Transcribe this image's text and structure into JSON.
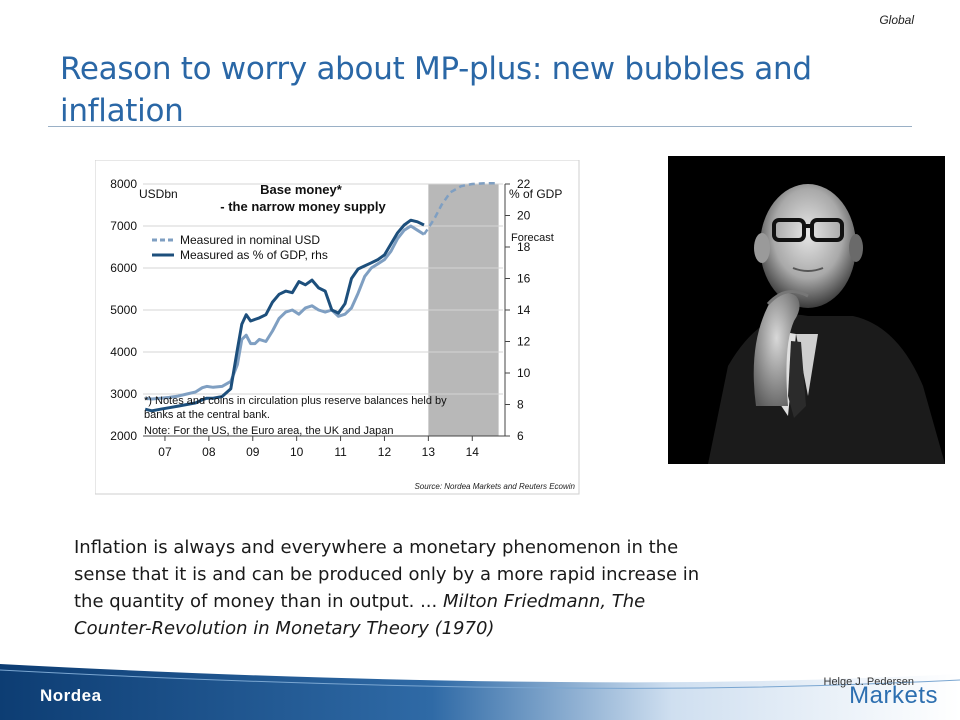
{
  "header": {
    "tag": "Global",
    "title": "Reason to worry about MP-plus: new bubbles and inflation"
  },
  "quote": {
    "text": "Inflation is always and everywhere a monetary phenomenon in the sense that it is and can be produced only by a more rapid increase in the quantity of money than in output. ...",
    "attribution": "Milton Friedmann, The Counter-Revolution in Monetary Theory (1970)"
  },
  "photo": {
    "icon": "portrait-photo-icon"
  },
  "footer": {
    "author": "Helge J. Pedersen",
    "brand_left": "Nordea",
    "brand_right": "Markets",
    "brand_color": "#2d6fb0"
  },
  "chart_data": {
    "type": "line",
    "title": "Base money*",
    "subtitle": "- the narrow money supply",
    "ylabel_left": "USDbn",
    "ylabel_right": "% of GDP",
    "ylim_left": [
      2000,
      8000
    ],
    "yticks_left": [
      2000,
      3000,
      4000,
      5000,
      6000,
      7000,
      8000
    ],
    "ylim_right": [
      6,
      22
    ],
    "yticks_right": [
      6,
      8,
      10,
      12,
      14,
      16,
      18,
      20,
      22
    ],
    "xlim": [
      2006.5,
      2014.7
    ],
    "xticks": [
      {
        "pos": 2007,
        "label": "07"
      },
      {
        "pos": 2008,
        "label": "08"
      },
      {
        "pos": 2009,
        "label": "09"
      },
      {
        "pos": 2010,
        "label": "10"
      },
      {
        "pos": 2011,
        "label": "11"
      },
      {
        "pos": 2012,
        "label": "12"
      },
      {
        "pos": 2013,
        "label": "13"
      },
      {
        "pos": 2014,
        "label": "14"
      }
    ],
    "forecast": {
      "label": "Forecast",
      "from": 2013.0,
      "to": 2014.6
    },
    "legend": [
      {
        "label": "Measured in nominal USD",
        "color": "#7f9fc2",
        "dashed": true
      },
      {
        "label": "Measured as % of GDP, rhs",
        "color": "#1d4f7c",
        "dashed": false
      }
    ],
    "series": [
      {
        "name": "Measured in nominal USD",
        "color": "#7f9fc2",
        "axis": "left",
        "x": [
          2006.55,
          2006.7,
          2006.9,
          2007.1,
          2007.3,
          2007.5,
          2007.7,
          2007.85,
          2007.95,
          2008.1,
          2008.3,
          2008.5,
          2008.65,
          2008.75,
          2008.85,
          2008.95,
          2009.05,
          2009.15,
          2009.3,
          2009.45,
          2009.6,
          2009.75,
          2009.9,
          2010.05,
          2010.2,
          2010.35,
          2010.5,
          2010.65,
          2010.8,
          2010.95,
          2011.1,
          2011.25,
          2011.4,
          2011.55,
          2011.7,
          2011.85,
          2012.0,
          2012.15,
          2012.3,
          2012.45,
          2012.6,
          2012.75,
          2012.9
        ],
        "y": [
          2900,
          2880,
          2900,
          2920,
          2950,
          3000,
          3050,
          3150,
          3180,
          3160,
          3180,
          3300,
          3700,
          4300,
          4400,
          4200,
          4200,
          4300,
          4250,
          4500,
          4800,
          4950,
          5000,
          4900,
          5050,
          5100,
          5000,
          4950,
          5000,
          4850,
          4900,
          5050,
          5400,
          5800,
          6000,
          6100,
          6200,
          6400,
          6700,
          6900,
          7000,
          6900,
          6800
        ]
      },
      {
        "name": "Measured as % of GDP, rhs",
        "color": "#1d4f7c",
        "axis": "right",
        "x": [
          2006.55,
          2006.7,
          2006.9,
          2007.1,
          2007.3,
          2007.5,
          2007.7,
          2007.85,
          2007.95,
          2008.1,
          2008.3,
          2008.5,
          2008.65,
          2008.75,
          2008.85,
          2008.95,
          2009.05,
          2009.15,
          2009.3,
          2009.45,
          2009.6,
          2009.75,
          2009.9,
          2010.05,
          2010.2,
          2010.35,
          2010.5,
          2010.65,
          2010.8,
          2010.95,
          2011.1,
          2011.25,
          2011.4,
          2011.55,
          2011.7,
          2011.85,
          2012.0,
          2012.15,
          2012.3,
          2012.45,
          2012.6,
          2012.75,
          2012.9
        ],
        "y": [
          7.7,
          7.6,
          7.7,
          7.8,
          7.9,
          8.0,
          8.1,
          8.3,
          8.4,
          8.4,
          8.5,
          9.0,
          11.5,
          13.1,
          13.7,
          13.3,
          13.4,
          13.5,
          13.7,
          14.5,
          15.0,
          15.2,
          15.1,
          15.8,
          15.6,
          15.9,
          15.4,
          15.2,
          14.0,
          13.8,
          14.4,
          16.0,
          16.6,
          16.8,
          17.0,
          17.2,
          17.5,
          18.2,
          18.9,
          19.4,
          19.7,
          19.6,
          19.4
        ]
      },
      {
        "name": "Measured in nominal USD forecast",
        "color": "#7f9fc2",
        "axis": "left",
        "dashed": true,
        "x": [
          2012.9,
          2013.0,
          2013.15,
          2013.3,
          2013.5,
          2013.75,
          2014.0,
          2014.3,
          2014.55
        ],
        "y": [
          6800,
          6950,
          7200,
          7500,
          7800,
          7950,
          8000,
          8020,
          8020
        ]
      }
    ],
    "notes": [
      "*) Notes and coins in circulation plus reserve balances held by",
      "banks at the central bank.",
      "Note: For the US, the Euro area, the UK and Japan"
    ],
    "source": "Source: Nordea Markets and Reuters Ecowin",
    "grid": true,
    "legend_position": "top-left"
  }
}
